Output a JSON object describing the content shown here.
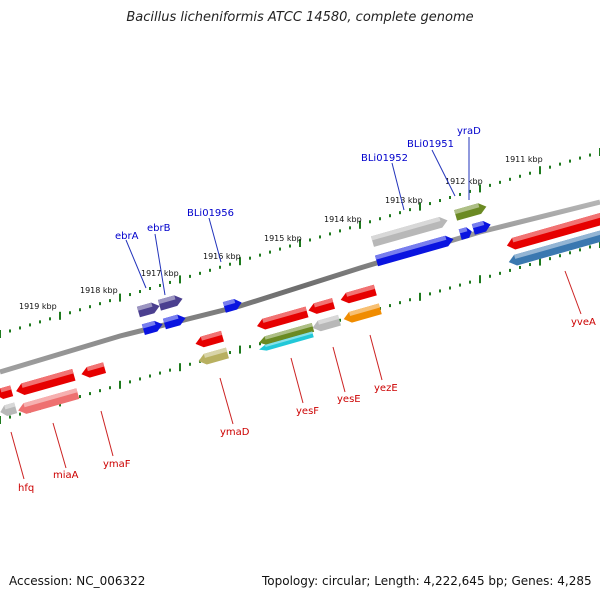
{
  "title": "Bacillus licheniformis ATCC 14580, complete genome",
  "footer": {
    "accession": "Accession: NC_006322",
    "summary": "Topology: circular; Length: 4,222,645 bp; Genes: 4,285"
  },
  "colors": {
    "backbone": "#8a8a8a",
    "tick": "#1e7a1e",
    "label_blue": "#0000cc",
    "label_red": "#cc0000",
    "leader_blue": "#2233bb",
    "leader_red": "#cc2222",
    "kbp_text": "#111111"
  },
  "kbp_labels": [
    "1911 kbp",
    "1912 kbp",
    "1913 kbp",
    "1914 kbp",
    "1915 kbp",
    "1916 kbp",
    "1917 kbp",
    "1918 kbp",
    "1919 kbp"
  ],
  "upper_labels": [
    "yraD",
    "BLi01951",
    "BLi01952",
    "BLi01956",
    "ebrB",
    "ebrA"
  ],
  "lower_labels": [
    "yveA",
    "yezE",
    "yesE",
    "yesF",
    "ymaD",
    "ymaF",
    "miaA",
    "hfq"
  ],
  "gene_colors": {
    "red": "#e60000",
    "blue": "#0a14e0",
    "navy": "#4b3f8f",
    "grey": "#b8b8b8",
    "olive": "#6b8a23",
    "khaki": "#b8b060",
    "orange": "#f08c00",
    "steel": "#3a78b0",
    "pink": "#ee7070",
    "cyan": "#22c8d8"
  }
}
